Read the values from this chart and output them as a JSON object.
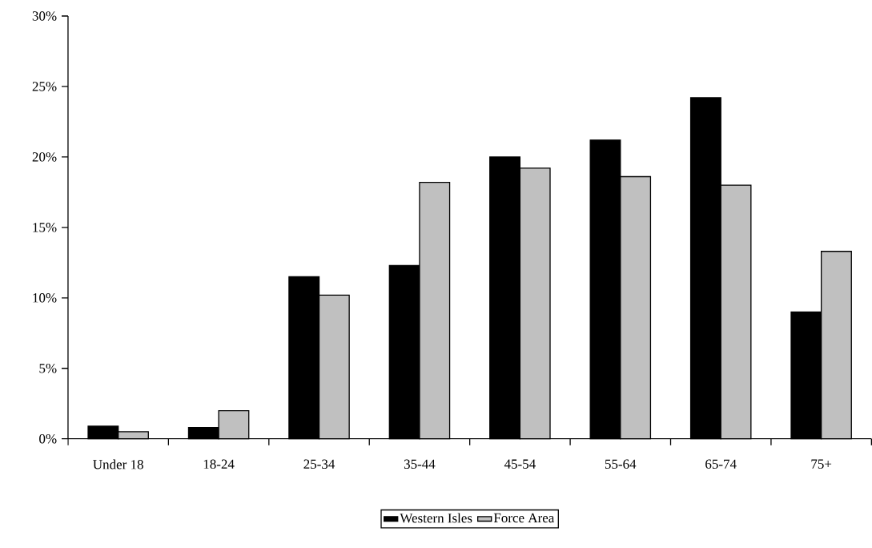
{
  "chart_data": {
    "type": "bar",
    "categories": [
      "Under 18",
      "18-24",
      "25-34",
      "35-44",
      "45-54",
      "55-64",
      "65-74",
      "75+"
    ],
    "series": [
      {
        "name": "Western Isles",
        "color": "#000000",
        "values": [
          0.9,
          0.8,
          11.5,
          12.3,
          20.0,
          21.2,
          24.2,
          9.0
        ]
      },
      {
        "name": "Force Area",
        "color": "#c0c0c0",
        "values": [
          0.5,
          2.0,
          10.2,
          18.2,
          19.2,
          18.6,
          18.0,
          13.3
        ]
      }
    ],
    "ylim": [
      0,
      30
    ],
    "yticks": [
      {
        "value": 0,
        "label": "0%"
      },
      {
        "value": 5,
        "label": "5%"
      },
      {
        "value": 10,
        "label": "10%"
      },
      {
        "value": 15,
        "label": "15%"
      },
      {
        "value": 20,
        "label": "20%"
      },
      {
        "value": 25,
        "label": "25%"
      },
      {
        "value": 30,
        "label": "30%"
      }
    ],
    "legend": "bottom",
    "grid": false
  }
}
